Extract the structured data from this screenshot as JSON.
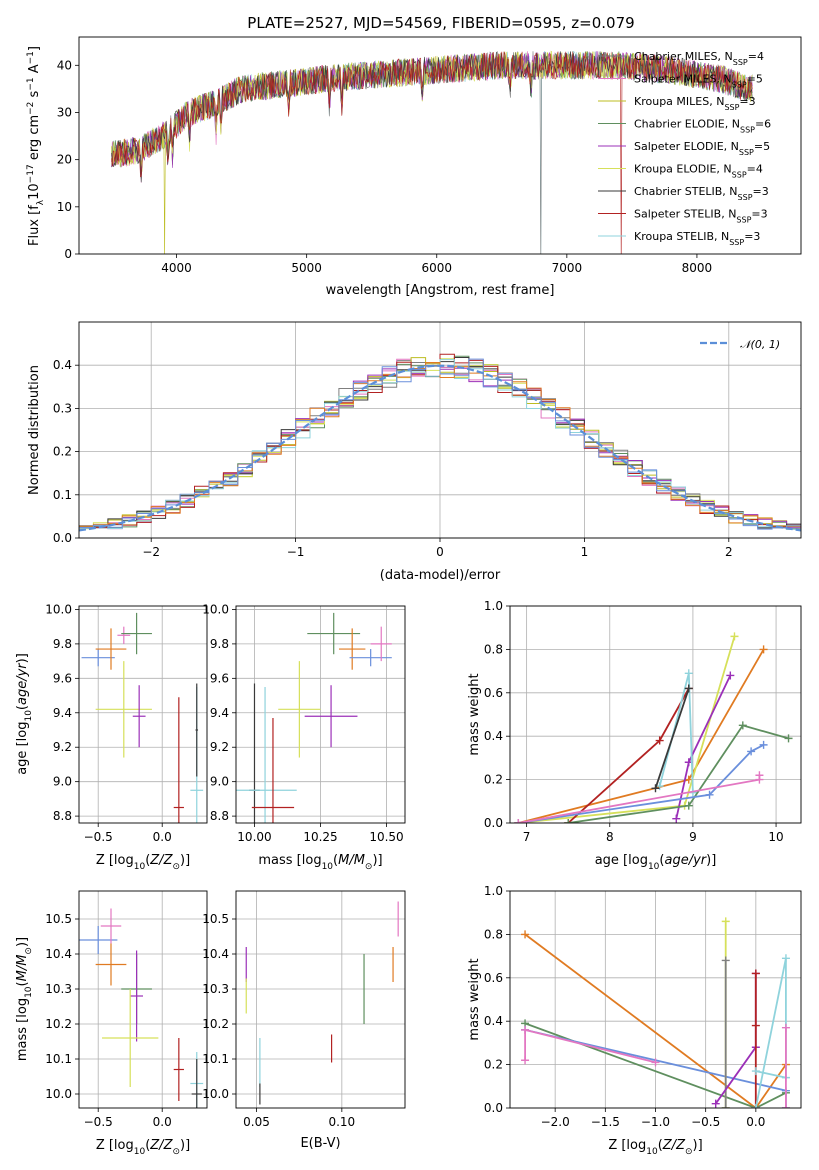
{
  "colors": {
    "chabrier_miles": "#7f7f7f",
    "salpeter_miles": "#e377c2",
    "kroupa_miles": "#bcbd22",
    "chabrier_elodie": "#5f8f5f",
    "salpeter_elodie": "#9b30b8",
    "kroupa_elodie": "#d6e05a",
    "chabrier_stelib": "#3a3a3a",
    "salpeter_stelib": "#b22222",
    "kroupa_stelib": "#8fd3dc",
    "orange": "#e07b22",
    "blue": "#6a8fdc",
    "normal": "#5b8fd8"
  },
  "chart_data": [
    {
      "type": "line",
      "title": "PLATE=2527, MJD=54569, FIBERID=0595, z=0.079",
      "xlabel": "wavelength [Angstrom, rest frame]",
      "ylabel": "Flux [f_λ10^-17 erg cm^-2 s^-1 A^-1]",
      "xlim": [
        3250,
        8800
      ],
      "ylim": [
        0,
        46
      ],
      "xticks": [
        "4000",
        "5000",
        "6000",
        "7000",
        "8000"
      ],
      "yticks": [
        "0",
        "10",
        "20",
        "30",
        "40"
      ],
      "legend_position": "right",
      "series": [
        {
          "name": "Chabrier MILES, N_SSP=4"
        },
        {
          "name": "Salpeter MILES, N_SSP=5"
        },
        {
          "name": "Kroupa MILES, N_SSP=3"
        },
        {
          "name": "Chabrier ELODIE, N_SSP=6"
        },
        {
          "name": "Salpeter ELODIE, N_SSP=5"
        },
        {
          "name": "Kroupa ELODIE, N_SSP=4"
        },
        {
          "name": "Chabrier STELIB, N_SSP=3"
        },
        {
          "name": "Salpeter STELIB, N_SSP=3"
        },
        {
          "name": "Kroupa STELIB, N_SSP=3"
        }
      ],
      "continuum": {
        "x": [
          3500,
          3700,
          3900,
          4100,
          4300,
          4500,
          4800,
          5100,
          5500,
          6000,
          6500,
          7000,
          7400,
          7800,
          8200,
          8400
        ],
        "y": [
          21,
          22,
          25,
          30,
          32,
          35,
          36,
          37,
          38,
          39,
          40,
          40,
          40,
          39,
          37,
          35
        ]
      }
    },
    {
      "type": "histogram",
      "xlabel": "(data-model)/error",
      "ylabel": "Normed distribution",
      "xlim": [
        -2.5,
        2.5
      ],
      "ylim": [
        0,
        0.5
      ],
      "xticks": [
        "−2",
        "−1",
        "0",
        "1",
        "2"
      ],
      "yticks": [
        "0.0",
        "0.1",
        "0.2",
        "0.3",
        "0.4"
      ],
      "grid": true,
      "legend": "𝒩(0, 1)",
      "legend_position": "top-right"
    },
    {
      "type": "scatter",
      "subtype": "errorbar",
      "xlabel": "Z [log10(Z/Z☉)]",
      "ylabel": "age  [log10(age/yr)]",
      "xlim": [
        -0.65,
        0.35
      ],
      "ylim": [
        8.76,
        10.02
      ],
      "xticks": [
        "−0.5",
        "0.0"
      ],
      "yticks": [
        "8.8",
        "9.0",
        "9.2",
        "9.4",
        "9.6",
        "9.8",
        "10.0"
      ],
      "grid": true,
      "points": [
        {
          "x": -0.5,
          "y": 9.72,
          "xerr": 0.13,
          "yerr": 0.05,
          "c": "blue"
        },
        {
          "x": -0.4,
          "y": 9.77,
          "xerr": 0.12,
          "yerr": 0.12,
          "c": "orange"
        },
        {
          "x": -0.3,
          "y": 9.85,
          "xerr": 0.05,
          "yerr": 0.05,
          "c": "salpeter_miles"
        },
        {
          "x": -0.2,
          "y": 9.86,
          "xerr": 0.12,
          "yerr": 0.12,
          "c": "chabrier_elodie"
        },
        {
          "x": -0.3,
          "y": 9.42,
          "xerr": 0.22,
          "yerr": 0.28,
          "c": "kroupa_elodie"
        },
        {
          "x": -0.18,
          "y": 9.38,
          "xerr": 0.05,
          "yerr": 0.18,
          "c": "salpeter_elodie"
        },
        {
          "x": 0.13,
          "y": 8.85,
          "xerr": 0.04,
          "yerr": 0.64,
          "c": "salpeter_stelib"
        },
        {
          "x": 0.27,
          "y": 8.95,
          "xerr": 0.05,
          "yerr": 0.6,
          "c": "kroupa_stelib"
        },
        {
          "x": 0.27,
          "y": 9.3,
          "xerr": 0.01,
          "yerr": 0.27,
          "c": "chabrier_stelib"
        }
      ]
    },
    {
      "type": "scatter",
      "subtype": "errorbar",
      "xlabel": "mass [log10(M/M☉)]",
      "ylabel": "",
      "xlim": [
        9.93,
        10.57
      ],
      "ylim": [
        8.76,
        10.02
      ],
      "xticks": [
        "10.00",
        "10.25",
        "10.50"
      ],
      "yticks": [
        "8.8",
        "9.0",
        "9.2",
        "9.4",
        "9.6",
        "9.8",
        "10.0"
      ],
      "grid": true,
      "points": [
        {
          "x": 10.0,
          "y": 8.95,
          "xerr": 0.02,
          "yerr": 0.62,
          "c": "chabrier_stelib"
        },
        {
          "x": 10.04,
          "y": 8.95,
          "xerr": 0.12,
          "yerr": 0.6,
          "c": "kroupa_stelib"
        },
        {
          "x": 10.07,
          "y": 8.85,
          "xerr": 0.08,
          "yerr": 0.52,
          "c": "salpeter_stelib"
        },
        {
          "x": 10.17,
          "y": 9.42,
          "xerr": 0.08,
          "yerr": 0.28,
          "c": "kroupa_elodie"
        },
        {
          "x": 10.29,
          "y": 9.38,
          "xerr": 0.1,
          "yerr": 0.18,
          "c": "salpeter_elodie"
        },
        {
          "x": 10.3,
          "y": 9.86,
          "xerr": 0.1,
          "yerr": 0.12,
          "c": "chabrier_elodie"
        },
        {
          "x": 10.37,
          "y": 9.77,
          "xerr": 0.05,
          "yerr": 0.12,
          "c": "orange"
        },
        {
          "x": 10.44,
          "y": 9.72,
          "xerr": 0.08,
          "yerr": 0.05,
          "c": "blue"
        },
        {
          "x": 10.48,
          "y": 9.8,
          "xerr": 0.04,
          "yerr": 0.1,
          "c": "salpeter_miles"
        }
      ]
    },
    {
      "type": "line",
      "xlabel": "age  [log10(age/yr)]",
      "ylabel": "mass weight",
      "xlim": [
        6.8,
        10.3
      ],
      "ylim": [
        0,
        1
      ],
      "xticks": [
        "7",
        "8",
        "9",
        "10"
      ],
      "yticks": [
        "0.0",
        "0.2",
        "0.4",
        "0.6",
        "0.8",
        "1.0"
      ],
      "grid": true,
      "series": [
        {
          "c": "orange",
          "x": [
            6.9,
            8.95,
            9.85
          ],
          "y": [
            0.0,
            0.2,
            0.8
          ]
        },
        {
          "c": "kroupa_elodie",
          "x": [
            6.9,
            8.9,
            9.5
          ],
          "y": [
            0.0,
            0.08,
            0.86
          ]
        },
        {
          "c": "salpeter_stelib",
          "x": [
            7.5,
            8.6,
            8.95
          ],
          "y": [
            0.0,
            0.38,
            0.62
          ]
        },
        {
          "c": "salpeter_elodie",
          "x": [
            8.8,
            8.95,
            9.45
          ],
          "y": [
            0.02,
            0.28,
            0.68
          ]
        },
        {
          "c": "kroupa_stelib",
          "x": [
            8.6,
            8.95,
            9.0
          ],
          "y": [
            0.17,
            0.69,
            0.14
          ]
        },
        {
          "c": "chabrier_elodie",
          "x": [
            7.5,
            8.95,
            9.6,
            10.15
          ],
          "y": [
            0.0,
            0.08,
            0.45,
            0.39
          ]
        },
        {
          "c": "blue",
          "x": [
            6.9,
            9.2,
            9.7,
            9.85
          ],
          "y": [
            0.0,
            0.13,
            0.33,
            0.36
          ]
        },
        {
          "c": "salpeter_miles",
          "x": [
            6.9,
            9.8,
            9.8
          ],
          "y": [
            0.0,
            0.2,
            0.22
          ]
        },
        {
          "c": "chabrier_stelib",
          "x": [
            8.55,
            8.95
          ],
          "y": [
            0.16,
            0.62
          ]
        }
      ]
    },
    {
      "type": "scatter",
      "subtype": "errorbar",
      "xlabel": "Z [log10(Z/Z☉)]",
      "ylabel": "mass [log10(M/M☉)]",
      "xlim": [
        -0.65,
        0.35
      ],
      "ylim": [
        9.96,
        10.58
      ],
      "xticks": [
        "−0.5",
        "0.0"
      ],
      "yticks": [
        "10.0",
        "10.1",
        "10.2",
        "10.3",
        "10.4",
        "10.5"
      ],
      "grid": true,
      "points": [
        {
          "x": -0.5,
          "y": 10.44,
          "xerr": 0.15,
          "yerr": 0.04,
          "c": "blue"
        },
        {
          "x": -0.4,
          "y": 10.37,
          "xerr": 0.12,
          "yerr": 0.06,
          "c": "orange"
        },
        {
          "x": -0.4,
          "y": 10.48,
          "xerr": 0.08,
          "yerr": 0.05,
          "c": "salpeter_miles"
        },
        {
          "x": -0.2,
          "y": 10.3,
          "xerr": 0.12,
          "yerr": 0.1,
          "c": "chabrier_elodie"
        },
        {
          "x": -0.2,
          "y": 10.28,
          "xerr": 0.05,
          "yerr": 0.13,
          "c": "salpeter_elodie"
        },
        {
          "x": -0.25,
          "y": 10.16,
          "xerr": 0.22,
          "yerr": 0.14,
          "c": "kroupa_elodie"
        },
        {
          "x": 0.13,
          "y": 10.07,
          "xerr": 0.04,
          "yerr": 0.09,
          "c": "salpeter_stelib"
        },
        {
          "x": 0.27,
          "y": 10.03,
          "xerr": 0.05,
          "yerr": 0.09,
          "c": "kroupa_stelib"
        },
        {
          "x": 0.27,
          "y": 10.0,
          "xerr": 0.04,
          "yerr": 0.1,
          "c": "chabrier_stelib"
        }
      ]
    },
    {
      "type": "scatter",
      "subtype": "errorbar",
      "xlabel": "E(B-V)",
      "ylabel": "",
      "xlim": [
        0.038,
        0.137
      ],
      "ylim": [
        9.96,
        10.58
      ],
      "xticks": [
        "0.05",
        "0.10"
      ],
      "yticks": [
        "10.0",
        "10.1",
        "10.2",
        "10.3",
        "10.4",
        "10.5"
      ],
      "grid": true,
      "points": [
        {
          "x": 0.044,
          "y": 10.37,
          "yerr": 0.05,
          "c": "salpeter_elodie"
        },
        {
          "x": 0.044,
          "y": 10.28,
          "yerr": 0.05,
          "c": "kroupa_elodie"
        },
        {
          "x": 0.052,
          "y": 10.09,
          "yerr": 0.07,
          "c": "kroupa_stelib"
        },
        {
          "x": 0.052,
          "y": 10.0,
          "yerr": 0.03,
          "c": "chabrier_stelib"
        },
        {
          "x": 0.094,
          "y": 10.13,
          "yerr": 0.04,
          "c": "salpeter_stelib"
        },
        {
          "x": 0.113,
          "y": 10.3,
          "yerr": 0.1,
          "c": "chabrier_elodie"
        },
        {
          "x": 0.13,
          "y": 10.37,
          "yerr": 0.05,
          "c": "orange"
        },
        {
          "x": 0.133,
          "y": 10.5,
          "yerr": 0.05,
          "c": "salpeter_miles"
        }
      ]
    },
    {
      "type": "line",
      "xlabel": "Z [log10(Z/Z☉)]",
      "ylabel": "mass weight",
      "xlim": [
        -2.45,
        0.45
      ],
      "ylim": [
        0,
        1
      ],
      "xticks": [
        "−2.0",
        "−1.5",
        "−1.0",
        "−0.5",
        "0.0"
      ],
      "yticks": [
        "0.0",
        "0.2",
        "0.4",
        "0.6",
        "0.8",
        "1.0"
      ],
      "grid": true,
      "series": [
        {
          "c": "orange",
          "x": [
            -2.3,
            0.0,
            0.3
          ],
          "y": [
            0.8,
            0.0,
            0.2
          ]
        },
        {
          "c": "chabrier_elodie",
          "x": [
            -2.3,
            0.0,
            0.3
          ],
          "y": [
            0.39,
            0.0,
            0.07
          ]
        },
        {
          "c": "blue",
          "x": [
            -2.3,
            0.3,
            0.3
          ],
          "y": [
            0.36,
            0.08,
            0.0
          ]
        },
        {
          "c": "salpeter_miles",
          "x": [
            -2.3,
            -2.3,
            -1.0
          ],
          "y": [
            0.22,
            0.36,
            0.21
          ]
        },
        {
          "c": "kroupa_elodie",
          "x": [
            -0.3,
            -0.3
          ],
          "y": [
            0.0,
            0.86
          ]
        },
        {
          "c": "chabrier_miles",
          "x": [
            -0.3,
            -0.3
          ],
          "y": [
            0.0,
            0.68
          ]
        },
        {
          "c": "salpeter_elodie",
          "x": [
            -0.4,
            0.0,
            0.0
          ],
          "y": [
            0.02,
            0.28,
            0.62
          ]
        },
        {
          "c": "salpeter_stelib",
          "x": [
            0.0,
            0.0,
            0.0
          ],
          "y": [
            0.0,
            0.38,
            0.62
          ]
        },
        {
          "c": "kroupa_stelib",
          "x": [
            0.0,
            0.3,
            0.3,
            0.0
          ],
          "y": [
            0.0,
            0.69,
            0.14,
            0.17
          ]
        },
        {
          "c": "salpeter_miles",
          "x": [
            0.3,
            0.3
          ],
          "y": [
            0.0,
            0.37
          ]
        }
      ]
    }
  ]
}
